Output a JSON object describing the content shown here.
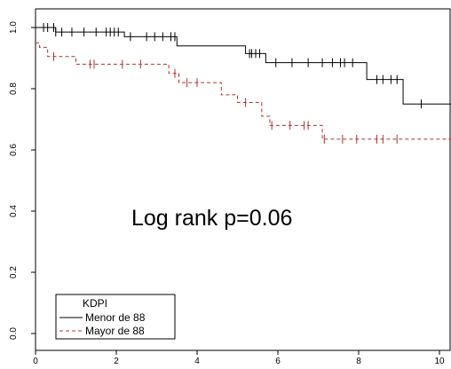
{
  "chart_data": {
    "type": "line",
    "subtype": "kaplan-meier",
    "xlim": [
      0,
      10.8
    ],
    "ylim": [
      0,
      1
    ],
    "x_ticks": [
      0,
      2,
      4,
      6,
      8,
      10
    ],
    "y_ticks": [
      0.0,
      0.2,
      0.4,
      0.6,
      0.8,
      1.0
    ],
    "x_tick_labels": [
      "0",
      "2",
      "4",
      "6",
      "8",
      "10"
    ],
    "y_tick_labels": [
      "0.0",
      "0.2",
      "0.4",
      "0.6",
      "0.8",
      "1.0"
    ],
    "annotation": "Log rank p=0.06",
    "legend": {
      "title": "KDPI",
      "position": "bottom-left"
    },
    "series": [
      {
        "name": "Menor de 88",
        "color": "#000000",
        "dash": "solid",
        "steps": [
          [
            0,
            1.0
          ],
          [
            0.5,
            0.985
          ],
          [
            2.2,
            0.97
          ],
          [
            3.5,
            0.94
          ],
          [
            5.2,
            0.915
          ],
          [
            5.7,
            0.885
          ],
          [
            8.2,
            0.83
          ],
          [
            9.1,
            0.75
          ],
          [
            10.8,
            0.75
          ]
        ],
        "censored": [
          [
            0.2,
            1.0
          ],
          [
            0.3,
            1.0
          ],
          [
            0.45,
            1.0
          ],
          [
            0.5,
            0.985
          ],
          [
            0.65,
            0.985
          ],
          [
            0.9,
            0.985
          ],
          [
            1.2,
            0.985
          ],
          [
            1.5,
            0.985
          ],
          [
            1.75,
            0.985
          ],
          [
            1.85,
            0.985
          ],
          [
            1.95,
            0.985
          ],
          [
            2.05,
            0.985
          ],
          [
            2.35,
            0.97
          ],
          [
            2.75,
            0.97
          ],
          [
            2.95,
            0.97
          ],
          [
            3.15,
            0.97
          ],
          [
            3.35,
            0.97
          ],
          [
            3.45,
            0.97
          ],
          [
            5.3,
            0.915
          ],
          [
            5.35,
            0.915
          ],
          [
            5.45,
            0.915
          ],
          [
            5.55,
            0.915
          ],
          [
            5.95,
            0.885
          ],
          [
            6.35,
            0.885
          ],
          [
            6.75,
            0.885
          ],
          [
            7.1,
            0.885
          ],
          [
            7.35,
            0.885
          ],
          [
            7.55,
            0.885
          ],
          [
            7.65,
            0.885
          ],
          [
            7.85,
            0.885
          ],
          [
            8.45,
            0.83
          ],
          [
            8.6,
            0.83
          ],
          [
            8.8,
            0.83
          ],
          [
            8.95,
            0.83
          ],
          [
            9.55,
            0.75
          ]
        ]
      },
      {
        "name": "Mayor de 88",
        "color": "#b03030",
        "dash": "dashed",
        "steps": [
          [
            0,
            0.95
          ],
          [
            0.1,
            0.935
          ],
          [
            0.3,
            0.905
          ],
          [
            1.0,
            0.88
          ],
          [
            3.3,
            0.85
          ],
          [
            3.55,
            0.82
          ],
          [
            4.6,
            0.78
          ],
          [
            5.0,
            0.755
          ],
          [
            5.6,
            0.71
          ],
          [
            5.8,
            0.68
          ],
          [
            7.1,
            0.635
          ],
          [
            10.8,
            0.635
          ]
        ],
        "censored": [
          [
            0.45,
            0.905
          ],
          [
            1.35,
            0.88
          ],
          [
            1.45,
            0.88
          ],
          [
            2.15,
            0.88
          ],
          [
            2.6,
            0.88
          ],
          [
            3.45,
            0.85
          ],
          [
            3.75,
            0.82
          ],
          [
            4.0,
            0.82
          ],
          [
            5.2,
            0.755
          ],
          [
            5.85,
            0.68
          ],
          [
            6.3,
            0.68
          ],
          [
            6.65,
            0.68
          ],
          [
            6.75,
            0.68
          ],
          [
            7.15,
            0.635
          ],
          [
            7.6,
            0.635
          ],
          [
            7.95,
            0.635
          ],
          [
            8.45,
            0.635
          ],
          [
            8.6,
            0.635
          ],
          [
            8.95,
            0.635
          ]
        ]
      }
    ]
  }
}
